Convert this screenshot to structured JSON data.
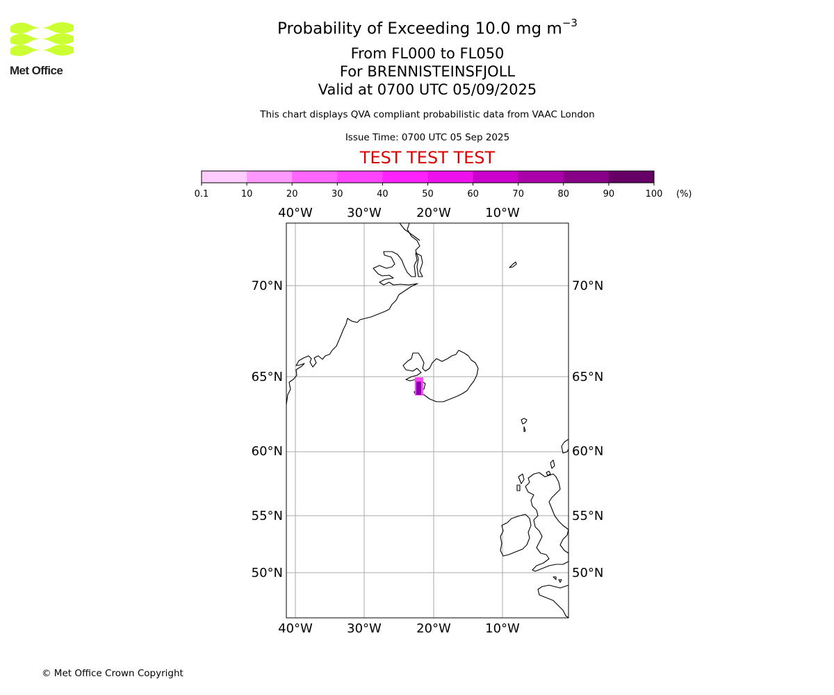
{
  "logo": {
    "text": "Met Office",
    "color": "#ccff33"
  },
  "title": {
    "main": "Probability of Exceeding 10.0 mg m",
    "main_sup": "−3",
    "line2": "From FL000 to FL050",
    "line3": "For BRENNISTEINSFJOLL",
    "line4": "Valid at 0700 UTC 05/09/2025"
  },
  "subtitle": "This chart displays QVA compliant probabilistic data from VAAC London",
  "issue_time": "Issue Time: 0700 UTC 05 Sep 2025",
  "test_banner": "TEST TEST TEST",
  "colorbar": {
    "ticks": [
      "0.1",
      "10",
      "20",
      "30",
      "40",
      "50",
      "60",
      "70",
      "80",
      "90",
      "100"
    ],
    "colors": [
      "#ffe6ff",
      "#ffccff",
      "#ff99ff",
      "#ff66ff",
      "#ff44ff",
      "#ff22ff",
      "#ee11ee",
      "#cc00cc",
      "#aa00aa",
      "#880088",
      "#660066"
    ],
    "unit": "(%)"
  },
  "map": {
    "lon_labels": [
      "40°W",
      "30°W",
      "20°W",
      "10°W"
    ],
    "lat_labels": [
      "70°N",
      "65°N",
      "60°N",
      "55°N",
      "50°N"
    ],
    "plume_color": "#ff44ff",
    "plume_core_color": "#8800aa"
  },
  "footer": "© Met Office Crown Copyright"
}
